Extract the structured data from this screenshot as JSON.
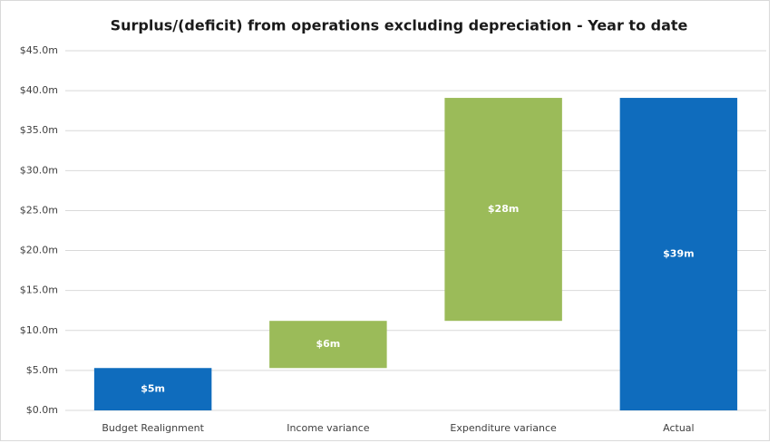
{
  "chart_data": {
    "type": "waterfall",
    "title": "Surplus/(deficit) from operations excluding depreciation - Year to date",
    "categories": [
      "Budget Realignment",
      "Income variance",
      "Expenditure variance",
      "Actual"
    ],
    "values": [
      5.3,
      5.9,
      27.9,
      39.1
    ],
    "value_labels": [
      "$5m",
      "$6m",
      "$28m",
      "$39m"
    ],
    "is_total": [
      false,
      false,
      false,
      true
    ],
    "colors": [
      "#0f6cbd",
      "#9bbb59",
      "#9bbb59",
      "#0f6cbd"
    ],
    "ylim": [
      0,
      45
    ],
    "yticks": [
      {
        "value": 0,
        "label": "$0.0m"
      },
      {
        "value": 5,
        "label": "$5.0m"
      },
      {
        "value": 10,
        "label": "$10.0m"
      },
      {
        "value": 15,
        "label": "$15.0m"
      },
      {
        "value": 20,
        "label": "$20.0m"
      },
      {
        "value": 25,
        "label": "$25.0m"
      },
      {
        "value": 30,
        "label": "$30.0m"
      },
      {
        "value": 35,
        "label": "$35.0m"
      },
      {
        "value": 40,
        "label": "$40.0m"
      },
      {
        "value": 45,
        "label": "$45.0m"
      }
    ],
    "grid": true
  }
}
